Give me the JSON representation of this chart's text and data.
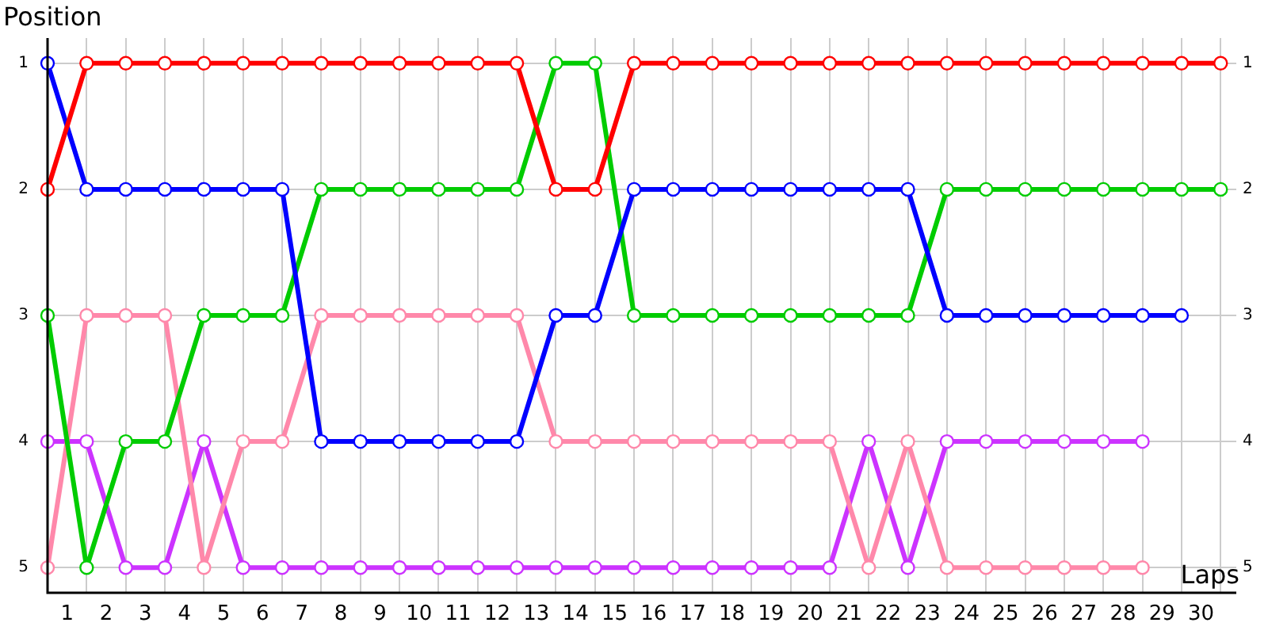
{
  "chart_data": {
    "type": "line",
    "xlabel": "Laps",
    "ylabel": "Position",
    "x": [
      0,
      1,
      2,
      3,
      4,
      5,
      6,
      7,
      8,
      9,
      10,
      11,
      12,
      13,
      14,
      15,
      16,
      17,
      18,
      19,
      20,
      21,
      22,
      23,
      24,
      25,
      26,
      27,
      28,
      29,
      30
    ],
    "xlim": [
      0,
      30.4
    ],
    "xticks": [
      {
        "value": 0,
        "label": null
      },
      {
        "value": 0.5,
        "label": "1"
      },
      {
        "value": 1,
        "label": null
      },
      {
        "value": 1.5,
        "label": "2"
      },
      {
        "value": 2,
        "label": null
      },
      {
        "value": 2.5,
        "label": "3"
      },
      {
        "value": 3,
        "label": null
      },
      {
        "value": 3.5,
        "label": "4"
      },
      {
        "value": 4,
        "label": null
      },
      {
        "value": 4.5,
        "label": "5"
      },
      {
        "value": 5,
        "label": null
      },
      {
        "value": 5.5,
        "label": "6"
      },
      {
        "value": 6,
        "label": null
      },
      {
        "value": 6.5,
        "label": "7"
      },
      {
        "value": 7,
        "label": null
      },
      {
        "value": 7.5,
        "label": "8"
      },
      {
        "value": 8,
        "label": null
      },
      {
        "value": 8.5,
        "label": "9"
      },
      {
        "value": 9,
        "label": null
      },
      {
        "value": 9.5,
        "label": "10"
      },
      {
        "value": 10,
        "label": null
      },
      {
        "value": 10.5,
        "label": "11"
      },
      {
        "value": 11,
        "label": null
      },
      {
        "value": 11.5,
        "label": "12"
      },
      {
        "value": 12,
        "label": null
      },
      {
        "value": 12.5,
        "label": "13"
      },
      {
        "value": 13,
        "label": null
      },
      {
        "value": 13.5,
        "label": "14"
      },
      {
        "value": 14,
        "label": null
      },
      {
        "value": 14.5,
        "label": "15"
      },
      {
        "value": 15,
        "label": null
      },
      {
        "value": 15.5,
        "label": "16"
      },
      {
        "value": 16,
        "label": null
      },
      {
        "value": 16.5,
        "label": "17"
      },
      {
        "value": 17,
        "label": null
      },
      {
        "value": 17.5,
        "label": "18"
      },
      {
        "value": 18,
        "label": null
      },
      {
        "value": 18.5,
        "label": "19"
      },
      {
        "value": 19,
        "label": null
      },
      {
        "value": 19.5,
        "label": "20"
      },
      {
        "value": 20,
        "label": null
      },
      {
        "value": 20.5,
        "label": "21"
      },
      {
        "value": 21,
        "label": null
      },
      {
        "value": 21.5,
        "label": "22"
      },
      {
        "value": 22,
        "label": null
      },
      {
        "value": 22.5,
        "label": "23"
      },
      {
        "value": 23,
        "label": null
      },
      {
        "value": 23.5,
        "label": "24"
      },
      {
        "value": 24,
        "label": null
      },
      {
        "value": 24.5,
        "label": "25"
      },
      {
        "value": 25,
        "label": null
      },
      {
        "value": 25.5,
        "label": "26"
      },
      {
        "value": 26,
        "label": null
      },
      {
        "value": 26.5,
        "label": "27"
      },
      {
        "value": 27,
        "label": null
      },
      {
        "value": 27.5,
        "label": "28"
      },
      {
        "value": 28,
        "label": null
      },
      {
        "value": 28.5,
        "label": "29"
      },
      {
        "value": 29,
        "label": null
      },
      {
        "value": 29.5,
        "label": "30"
      },
      {
        "value": 30,
        "label": null
      }
    ],
    "ylim": [
      5.2,
      0.8
    ],
    "yticks": [
      1,
      2,
      3,
      4,
      5
    ],
    "y2lim": [
      5.2,
      0.8
    ],
    "y2ticks": [
      1,
      2,
      3,
      4,
      5
    ],
    "grid": true,
    "legend": false,
    "marker": "circle",
    "line_style": "solid",
    "series": [
      {
        "color": "#ff0000",
        "values": [
          2,
          1,
          1,
          1,
          1,
          1,
          1,
          1,
          1,
          1,
          1,
          1,
          1,
          2,
          2,
          1,
          1,
          1,
          1,
          1,
          1,
          1,
          1,
          1,
          1,
          1,
          1,
          1,
          1,
          1,
          1
        ]
      },
      {
        "color": "#0000ff",
        "values": [
          1,
          2,
          2,
          2,
          2,
          2,
          2,
          4,
          4,
          4,
          4,
          4,
          4,
          3,
          3,
          2,
          2,
          2,
          2,
          2,
          2,
          2,
          2,
          3,
          3,
          3,
          3,
          3,
          3,
          3,
          null
        ]
      },
      {
        "color": "#00cc00",
        "values": [
          3,
          5,
          4,
          4,
          3,
          3,
          3,
          2,
          2,
          2,
          2,
          2,
          2,
          1,
          1,
          3,
          3,
          3,
          3,
          3,
          3,
          3,
          3,
          2,
          2,
          2,
          2,
          2,
          2,
          2,
          2
        ]
      },
      {
        "color": "#ff88aa",
        "values": [
          5,
          3,
          3,
          3,
          5,
          4,
          4,
          3,
          3,
          3,
          3,
          3,
          3,
          4,
          4,
          4,
          4,
          4,
          4,
          4,
          4,
          5,
          4,
          5,
          5,
          5,
          5,
          5,
          5,
          null,
          null
        ]
      },
      {
        "color": "#cc33ff",
        "values": [
          4,
          4,
          5,
          5,
          4,
          5,
          5,
          5,
          5,
          5,
          5,
          5,
          5,
          5,
          5,
          5,
          5,
          5,
          5,
          5,
          5,
          4,
          5,
          4,
          4,
          4,
          4,
          4,
          4,
          null,
          null
        ]
      }
    ]
  }
}
